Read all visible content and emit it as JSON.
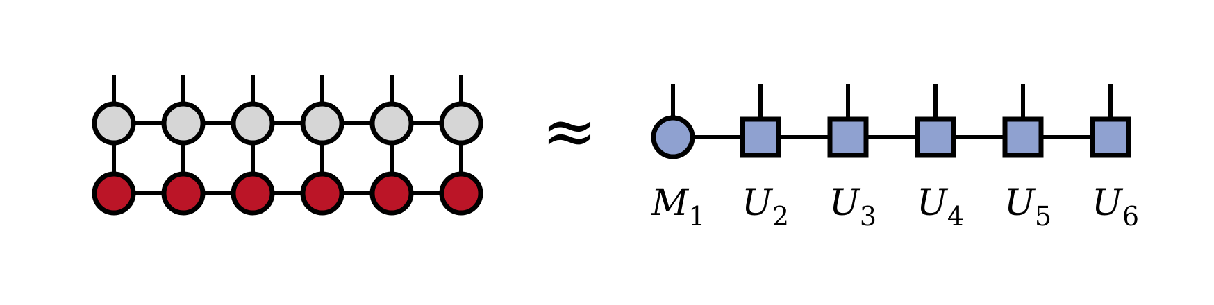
{
  "symbols": {
    "approx": "≈"
  },
  "colors": {
    "top_row_fill": "#d6d6d6",
    "bottom_row_fill": "#bb1527",
    "mps_fill": "#8fa1d0",
    "stroke": "#000000"
  },
  "labels": [
    {
      "main": "M",
      "sub": "1"
    },
    {
      "main": "U",
      "sub": "2"
    },
    {
      "main": "U",
      "sub": "3"
    },
    {
      "main": "U",
      "sub": "4"
    },
    {
      "main": "U",
      "sub": "5"
    },
    {
      "main": "U",
      "sub": "6"
    }
  ]
}
